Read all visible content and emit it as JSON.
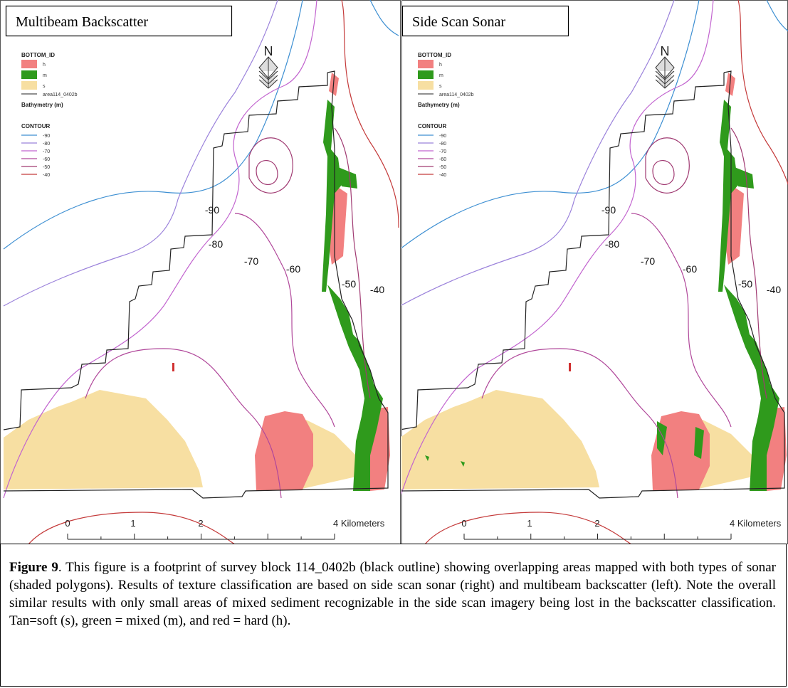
{
  "panels": [
    {
      "title": "Multibeam Backscatter"
    },
    {
      "title": "Side Scan Sonar"
    }
  ],
  "legend": {
    "heading": "BOTTOM_ID",
    "items": [
      "h",
      "m",
      "s"
    ],
    "outline": "area114_0402b",
    "bathymetry": "Bathymetry (m)",
    "contour_heading": "CONTOUR",
    "contours": [
      "-90",
      "-80",
      "-70",
      "-60",
      "-50",
      "-40"
    ]
  },
  "north": "N",
  "map_labels": [
    "-90",
    "-80",
    "-70",
    "-60",
    "-50",
    "-40"
  ],
  "scale_bar": {
    "labels": [
      "0",
      "1",
      "2",
      "4 Kilometers"
    ]
  },
  "caption": {
    "label": "Figure 9",
    "text": ".   This figure is a footprint of survey block 114_0402b (black outline) showing overlapping areas mapped with both types of sonar (shaded polygons).   Results of texture classification are based on side scan sonar (right) and multibeam backscatter (left).   Note the overall similar results with only small areas of mixed sediment recognizable in the side scan imagery being lost in the backscatter classification.   Tan=soft (s), green = mixed (m), and red = hard (h)."
  }
}
